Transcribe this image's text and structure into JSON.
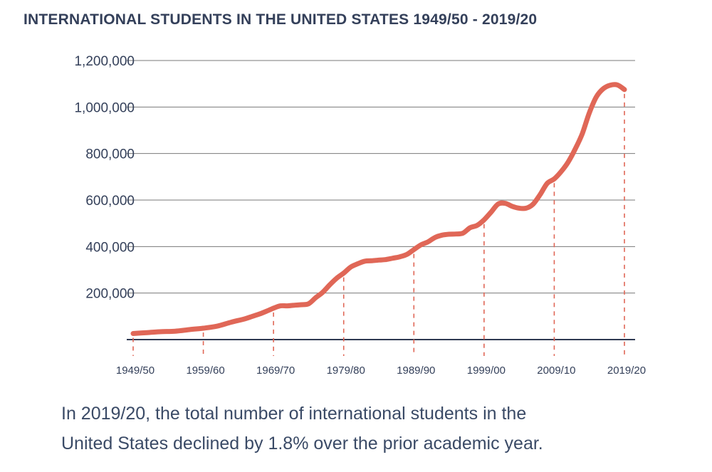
{
  "chart_data": {
    "type": "line",
    "title": "INTERNATIONAL STUDENTS IN THE UNITED STATES 1949/50 - 2019/20",
    "xlabel": "",
    "ylabel": "",
    "ylim": [
      0,
      1200000
    ],
    "yticks": [
      200000,
      400000,
      600000,
      800000,
      1000000,
      1200000
    ],
    "ytick_labels": [
      "200,000",
      "400,000",
      "600,000",
      "800,000",
      "1,000,000",
      "1,200,000"
    ],
    "xtick_labels": [
      "1949/50",
      "1959/60",
      "1969/70",
      "1979/80",
      "1989/90",
      "1999/00",
      "2009/10",
      "2019/20"
    ],
    "xtick_years": [
      1949,
      1959,
      1969,
      1979,
      1989,
      1999,
      2009,
      2019
    ],
    "grid": true,
    "line_color": "#e06757",
    "series": [
      {
        "name": "",
        "x": [
          1949,
          1951,
          1953,
          1955,
          1957,
          1959,
          1961,
          1963,
          1965,
          1966,
          1967,
          1968,
          1969,
          1970,
          1971,
          1972,
          1973,
          1974,
          1975,
          1976,
          1977,
          1978,
          1979,
          1980,
          1981,
          1982,
          1983,
          1984,
          1985,
          1986,
          1987,
          1988,
          1989,
          1990,
          1991,
          1992,
          1993,
          1994,
          1995,
          1996,
          1997,
          1998,
          1999,
          2000,
          2001,
          2002,
          2003,
          2004,
          2005,
          2006,
          2007,
          2008,
          2009,
          2010,
          2011,
          2012,
          2013,
          2014,
          2015,
          2016,
          2017,
          2018,
          2019
        ],
        "y": [
          26000,
          30000,
          34000,
          36000,
          43000,
          49000,
          58000,
          75000,
          90000,
          100000,
          110000,
          122000,
          135000,
          145000,
          145000,
          148000,
          150000,
          154000,
          180000,
          203000,
          235000,
          264000,
          286000,
          312000,
          326000,
          337000,
          339000,
          342000,
          344000,
          350000,
          356000,
          366000,
          387000,
          407000,
          420000,
          439000,
          449000,
          453000,
          454000,
          458000,
          481000,
          491000,
          515000,
          548000,
          583000,
          586000,
          573000,
          565000,
          565000,
          583000,
          624000,
          672000,
          691000,
          723000,
          764000,
          820000,
          886000,
          975000,
          1044000,
          1079000,
          1094000,
          1095000,
          1075000
        ]
      }
    ],
    "markers": [
      1949,
      1959,
      1969,
      1979,
      1989,
      1999,
      2009,
      2019
    ]
  },
  "caption": {
    "line1": "In 2019/20, the total number of international students in the",
    "line2": "United States declined by 1.8% over the prior academic year."
  }
}
